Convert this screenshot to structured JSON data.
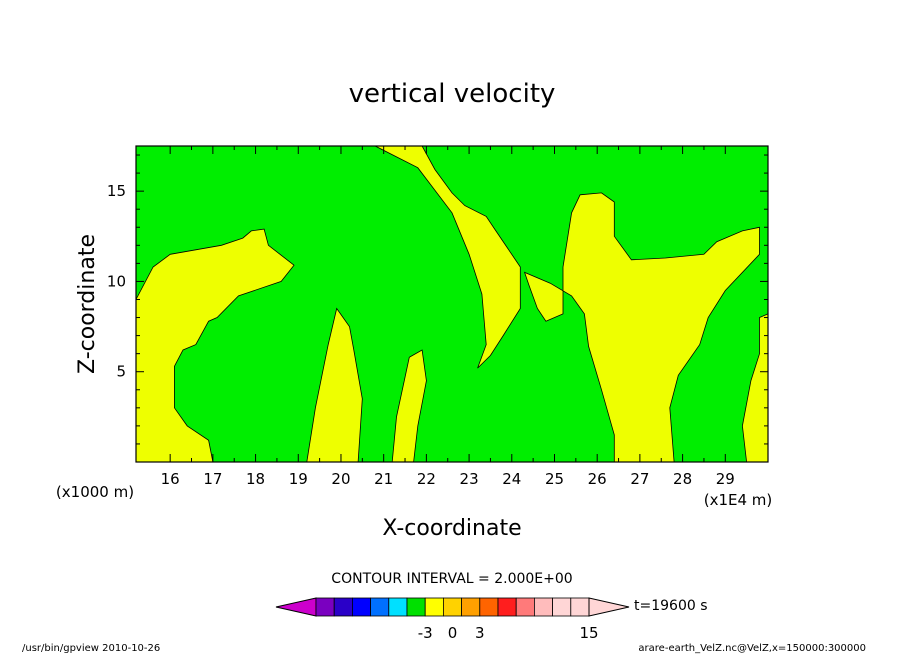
{
  "chart_data": {
    "type": "heatmap",
    "title": "vertical velocity",
    "xlabel": "X-coordinate",
    "ylabel": "Z-coordinate",
    "x_unit_label": "(x1E4 m)",
    "z_unit_label": "(x1000 m)",
    "xlim": [
      15.2,
      30.0
    ],
    "ylim": [
      0.0,
      17.5
    ],
    "x_ticks": [
      16,
      17,
      18,
      19,
      20,
      21,
      22,
      23,
      24,
      25,
      26,
      27,
      28,
      29
    ],
    "y_ticks": [
      5,
      10,
      15
    ],
    "contour_interval_text": "CONTOUR INTERVAL = 2.000E+00",
    "time_text": "t=19600 s",
    "levels": [
      -15,
      -13,
      -11,
      -9,
      -7,
      -5,
      -3,
      -1,
      1,
      3,
      5,
      7,
      9,
      11,
      13,
      15
    ],
    "colorbar_labels": [
      "-3",
      "0",
      "3",
      "15"
    ],
    "colorbar_colors": [
      "#cc00cc",
      "#7a00c0",
      "#2a00c8",
      "#0000ff",
      "#0070ff",
      "#00e0ff",
      "#00e000",
      "#ffff00",
      "#ffd200",
      "#ffa000",
      "#ff6400",
      "#ff1e1e",
      "#ff7a7a",
      "#ffbcbc",
      "#ffd6d6"
    ],
    "field_colors": {
      "negative": "#00ee00",
      "positive": "#eeff00"
    },
    "positive_regions": [
      {
        "name": "left-low",
        "outline": [
          [
            15.2,
            9.0
          ],
          [
            15.6,
            10.8
          ],
          [
            16.0,
            11.5
          ],
          [
            17.2,
            12.0
          ],
          [
            17.7,
            12.4
          ],
          [
            17.9,
            12.8
          ],
          [
            18.2,
            12.9
          ],
          [
            18.3,
            12.0
          ],
          [
            18.9,
            10.9
          ],
          [
            18.6,
            10.0
          ],
          [
            17.6,
            9.2
          ],
          [
            17.1,
            8.0
          ],
          [
            16.9,
            7.8
          ],
          [
            16.6,
            6.5
          ],
          [
            16.3,
            6.2
          ],
          [
            16.1,
            5.3
          ],
          [
            16.1,
            3.0
          ],
          [
            16.4,
            2.0
          ],
          [
            16.9,
            1.2
          ],
          [
            17.0,
            0.0
          ],
          [
            15.2,
            0.0
          ]
        ]
      },
      {
        "name": "center-band",
        "outline": [
          [
            19.2,
            0.0
          ],
          [
            19.4,
            3.0
          ],
          [
            19.7,
            6.5
          ],
          [
            19.9,
            8.5
          ],
          [
            20.2,
            7.5
          ],
          [
            20.3,
            6.2
          ],
          [
            20.5,
            3.5
          ],
          [
            20.4,
            0.0
          ]
        ]
      },
      {
        "name": "center-band-2",
        "outline": [
          [
            21.2,
            0.0
          ],
          [
            21.3,
            2.5
          ],
          [
            21.6,
            5.8
          ],
          [
            21.9,
            6.2
          ],
          [
            22.0,
            4.5
          ],
          [
            21.8,
            2.0
          ],
          [
            21.7,
            0.0
          ]
        ]
      },
      {
        "name": "upper-middle",
        "outline": [
          [
            20.8,
            17.5
          ],
          [
            21.8,
            16.3
          ],
          [
            22.6,
            13.8
          ],
          [
            23.0,
            11.5
          ],
          [
            23.3,
            9.3
          ],
          [
            23.4,
            6.5
          ],
          [
            23.2,
            5.2
          ],
          [
            23.5,
            5.9
          ],
          [
            23.8,
            7.0
          ],
          [
            24.2,
            8.5
          ],
          [
            24.2,
            10.8
          ],
          [
            23.6,
            12.9
          ],
          [
            23.4,
            13.6
          ],
          [
            22.9,
            14.2
          ],
          [
            22.6,
            14.9
          ],
          [
            22.2,
            16.2
          ],
          [
            21.9,
            17.5
          ]
        ]
      },
      {
        "name": "right-main",
        "outline": [
          [
            24.3,
            10.5
          ],
          [
            24.4,
            9.8
          ],
          [
            24.6,
            8.5
          ],
          [
            24.8,
            7.8
          ],
          [
            25.2,
            8.2
          ],
          [
            25.2,
            10.8
          ],
          [
            25.4,
            13.8
          ],
          [
            25.6,
            14.8
          ],
          [
            26.1,
            14.9
          ],
          [
            26.4,
            14.4
          ],
          [
            26.4,
            12.5
          ],
          [
            26.8,
            11.2
          ],
          [
            27.6,
            11.3
          ],
          [
            28.5,
            11.5
          ],
          [
            28.8,
            12.2
          ],
          [
            29.4,
            12.8
          ],
          [
            29.8,
            13.0
          ],
          [
            29.8,
            11.5
          ],
          [
            29.0,
            9.5
          ],
          [
            28.6,
            8.0
          ],
          [
            28.4,
            6.5
          ],
          [
            27.9,
            4.8
          ],
          [
            27.7,
            3.0
          ],
          [
            27.8,
            0.0
          ],
          [
            26.4,
            0.0
          ],
          [
            26.4,
            1.5
          ],
          [
            26.1,
            4.0
          ],
          [
            25.8,
            6.4
          ],
          [
            25.7,
            8.2
          ],
          [
            25.4,
            9.2
          ],
          [
            24.9,
            9.9
          ]
        ]
      },
      {
        "name": "right-edge",
        "outline": [
          [
            29.8,
            8.0
          ],
          [
            30.0,
            8.2
          ],
          [
            30.0,
            0.0
          ],
          [
            29.5,
            0.0
          ],
          [
            29.4,
            2.0
          ],
          [
            29.6,
            4.5
          ],
          [
            29.8,
            6.0
          ]
        ]
      }
    ]
  },
  "footer": {
    "left": "/usr/bin/gpview  2010-10-26",
    "right": "arare-earth_VelZ.nc@VelZ,x=150000:300000"
  }
}
